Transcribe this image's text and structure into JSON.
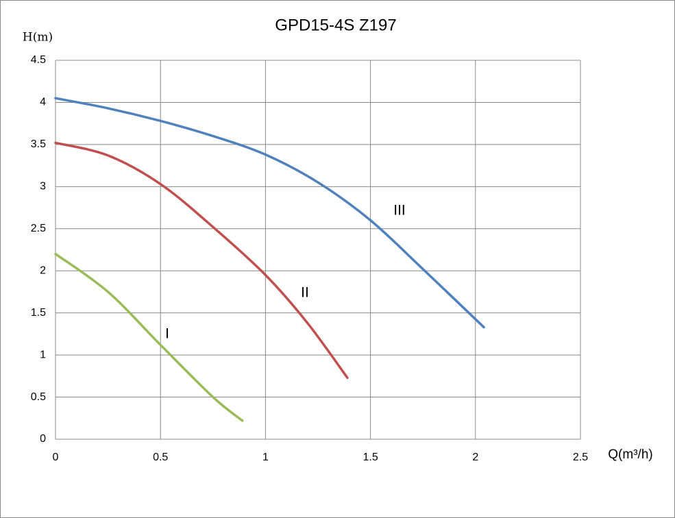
{
  "chart_data": {
    "type": "line",
    "title": "GPD15-4S  Z197",
    "x_label": "Q(m³/h)",
    "y_label": "H(m)",
    "xlim": [
      0,
      2.5
    ],
    "xticks": [
      0,
      0.5,
      1,
      1.5,
      2,
      2.5
    ],
    "ylim": [
      0,
      4.5
    ],
    "yticks": [
      0,
      0.5,
      1,
      1.5,
      2,
      2.5,
      3,
      3.5,
      4,
      4.5
    ],
    "grid": true,
    "series": [
      {
        "name": "I",
        "color": "#9bbb59",
        "x": [
          0,
          0.25,
          0.5,
          0.75,
          0.89
        ],
        "values": [
          2.2,
          1.75,
          1.12,
          0.5,
          0.22
        ]
      },
      {
        "name": "II",
        "color": "#c0504d",
        "x": [
          0,
          0.25,
          0.5,
          0.75,
          1.0,
          1.2,
          1.39
        ],
        "values": [
          3.52,
          3.37,
          3.03,
          2.52,
          1.95,
          1.38,
          0.73
        ]
      },
      {
        "name": "III",
        "color": "#4f81bd",
        "x": [
          0,
          0.25,
          0.5,
          0.75,
          1.0,
          1.25,
          1.5,
          1.75,
          2.04
        ],
        "values": [
          4.05,
          3.93,
          3.78,
          3.6,
          3.38,
          3.05,
          2.6,
          2.02,
          1.33
        ]
      }
    ]
  }
}
